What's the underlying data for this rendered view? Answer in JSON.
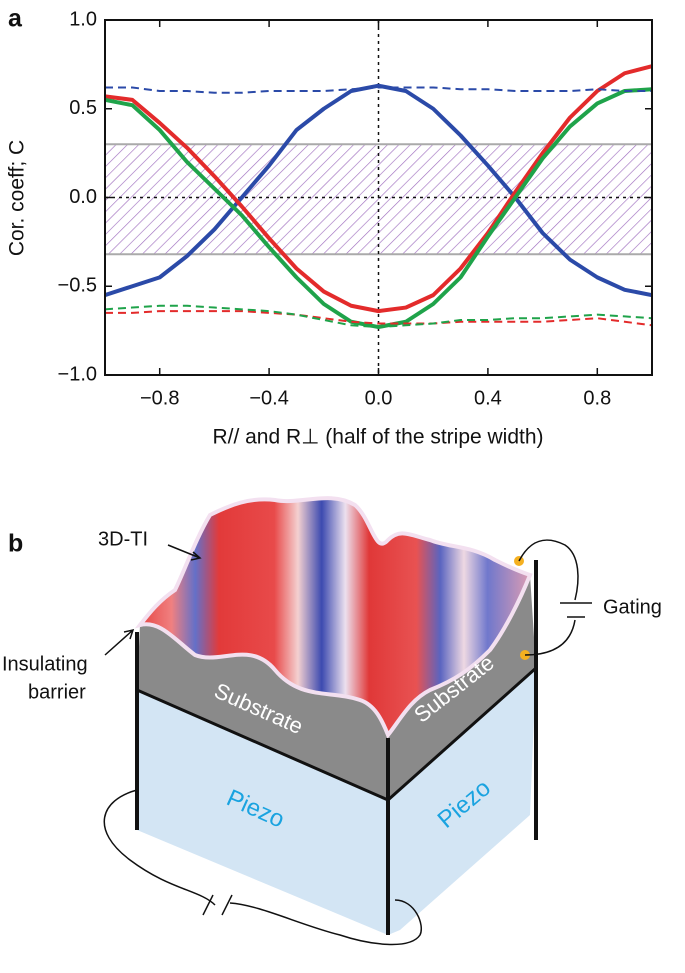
{
  "chart_data": {
    "type": "line",
    "panel_label": "a",
    "x_label": "R// and R⊥ (half of the stripe width)",
    "y_label": "Cor. coeff; C",
    "x": [
      -1.0,
      -0.9,
      -0.8,
      -0.7,
      -0.6,
      -0.5,
      -0.4,
      -0.3,
      -0.2,
      -0.1,
      0.0,
      0.1,
      0.2,
      0.3,
      0.4,
      0.5,
      0.6,
      0.7,
      0.8,
      0.9,
      1.0
    ],
    "series": [
      {
        "color": "#2b4aa8",
        "linestyle": "solid",
        "values": [
          -0.55,
          -0.5,
          -0.45,
          -0.33,
          -0.18,
          0.0,
          0.18,
          0.38,
          0.5,
          0.6,
          0.63,
          0.6,
          0.5,
          0.35,
          0.18,
          0.0,
          -0.2,
          -0.35,
          -0.45,
          -0.52,
          -0.55
        ]
      },
      {
        "color": "#e32b2b",
        "linestyle": "solid",
        "values": [
          0.57,
          0.55,
          0.42,
          0.28,
          0.12,
          -0.05,
          -0.23,
          -0.4,
          -0.53,
          -0.61,
          -0.64,
          -0.62,
          -0.55,
          -0.4,
          -0.2,
          0.03,
          0.25,
          0.45,
          0.6,
          0.7,
          0.74
        ]
      },
      {
        "color": "#1fa34a",
        "linestyle": "solid",
        "values": [
          0.55,
          0.52,
          0.38,
          0.2,
          0.05,
          -0.1,
          -0.28,
          -0.45,
          -0.6,
          -0.7,
          -0.73,
          -0.7,
          -0.6,
          -0.45,
          -0.22,
          0.0,
          0.22,
          0.4,
          0.53,
          0.6,
          0.61
        ]
      },
      {
        "color": "#2b4aa8",
        "linestyle": "dashed",
        "values": [
          0.62,
          0.62,
          0.6,
          0.6,
          0.59,
          0.59,
          0.6,
          0.6,
          0.6,
          0.61,
          0.62,
          0.62,
          0.62,
          0.61,
          0.61,
          0.6,
          0.6,
          0.6,
          0.61,
          0.6,
          0.6
        ]
      },
      {
        "color": "#e32b2b",
        "linestyle": "dashed",
        "values": [
          -0.65,
          -0.65,
          -0.64,
          -0.64,
          -0.64,
          -0.64,
          -0.65,
          -0.66,
          -0.68,
          -0.7,
          -0.71,
          -0.71,
          -0.71,
          -0.7,
          -0.7,
          -0.7,
          -0.7,
          -0.69,
          -0.68,
          -0.7,
          -0.72
        ]
      },
      {
        "color": "#1fa34a",
        "linestyle": "dashed",
        "values": [
          -0.63,
          -0.62,
          -0.61,
          -0.61,
          -0.62,
          -0.63,
          -0.64,
          -0.66,
          -0.69,
          -0.72,
          -0.73,
          -0.72,
          -0.71,
          -0.69,
          -0.69,
          -0.68,
          -0.68,
          -0.67,
          -0.66,
          -0.67,
          -0.68
        ]
      }
    ],
    "shaded_band": [
      -0.32,
      0.3
    ],
    "band_color": "#a070c0",
    "reference_x": 0.0,
    "reference_y": 0.0,
    "xlim": [
      -1.0,
      1.0
    ],
    "ylim": [
      -1.0,
      1.0
    ],
    "xticks": [
      {
        "value": -0.8,
        "label": "−0.8"
      },
      {
        "value": -0.4,
        "label": "−0.4"
      },
      {
        "value": 0.0,
        "label": "0.0"
      },
      {
        "value": 0.4,
        "label": "0.4"
      },
      {
        "value": 0.8,
        "label": "0.8"
      }
    ],
    "yticks": [
      {
        "value": -1.0,
        "label": "−1.0"
      },
      {
        "value": -0.5,
        "label": "−0.5"
      },
      {
        "value": 0.0,
        "label": "0.0"
      },
      {
        "value": 0.5,
        "label": "0.5"
      },
      {
        "value": 1.0,
        "label": "1.0"
      }
    ]
  },
  "diagram": {
    "panel_label": "b",
    "labels": {
      "ti": "3D-TI",
      "barrier_1": "Insulating",
      "barrier_2": "barrier",
      "gating": "Gating",
      "substrate_left": "Substrate",
      "substrate_right": "Substrate",
      "piezo_left": "Piezo",
      "piezo_right": "Piezo"
    }
  }
}
